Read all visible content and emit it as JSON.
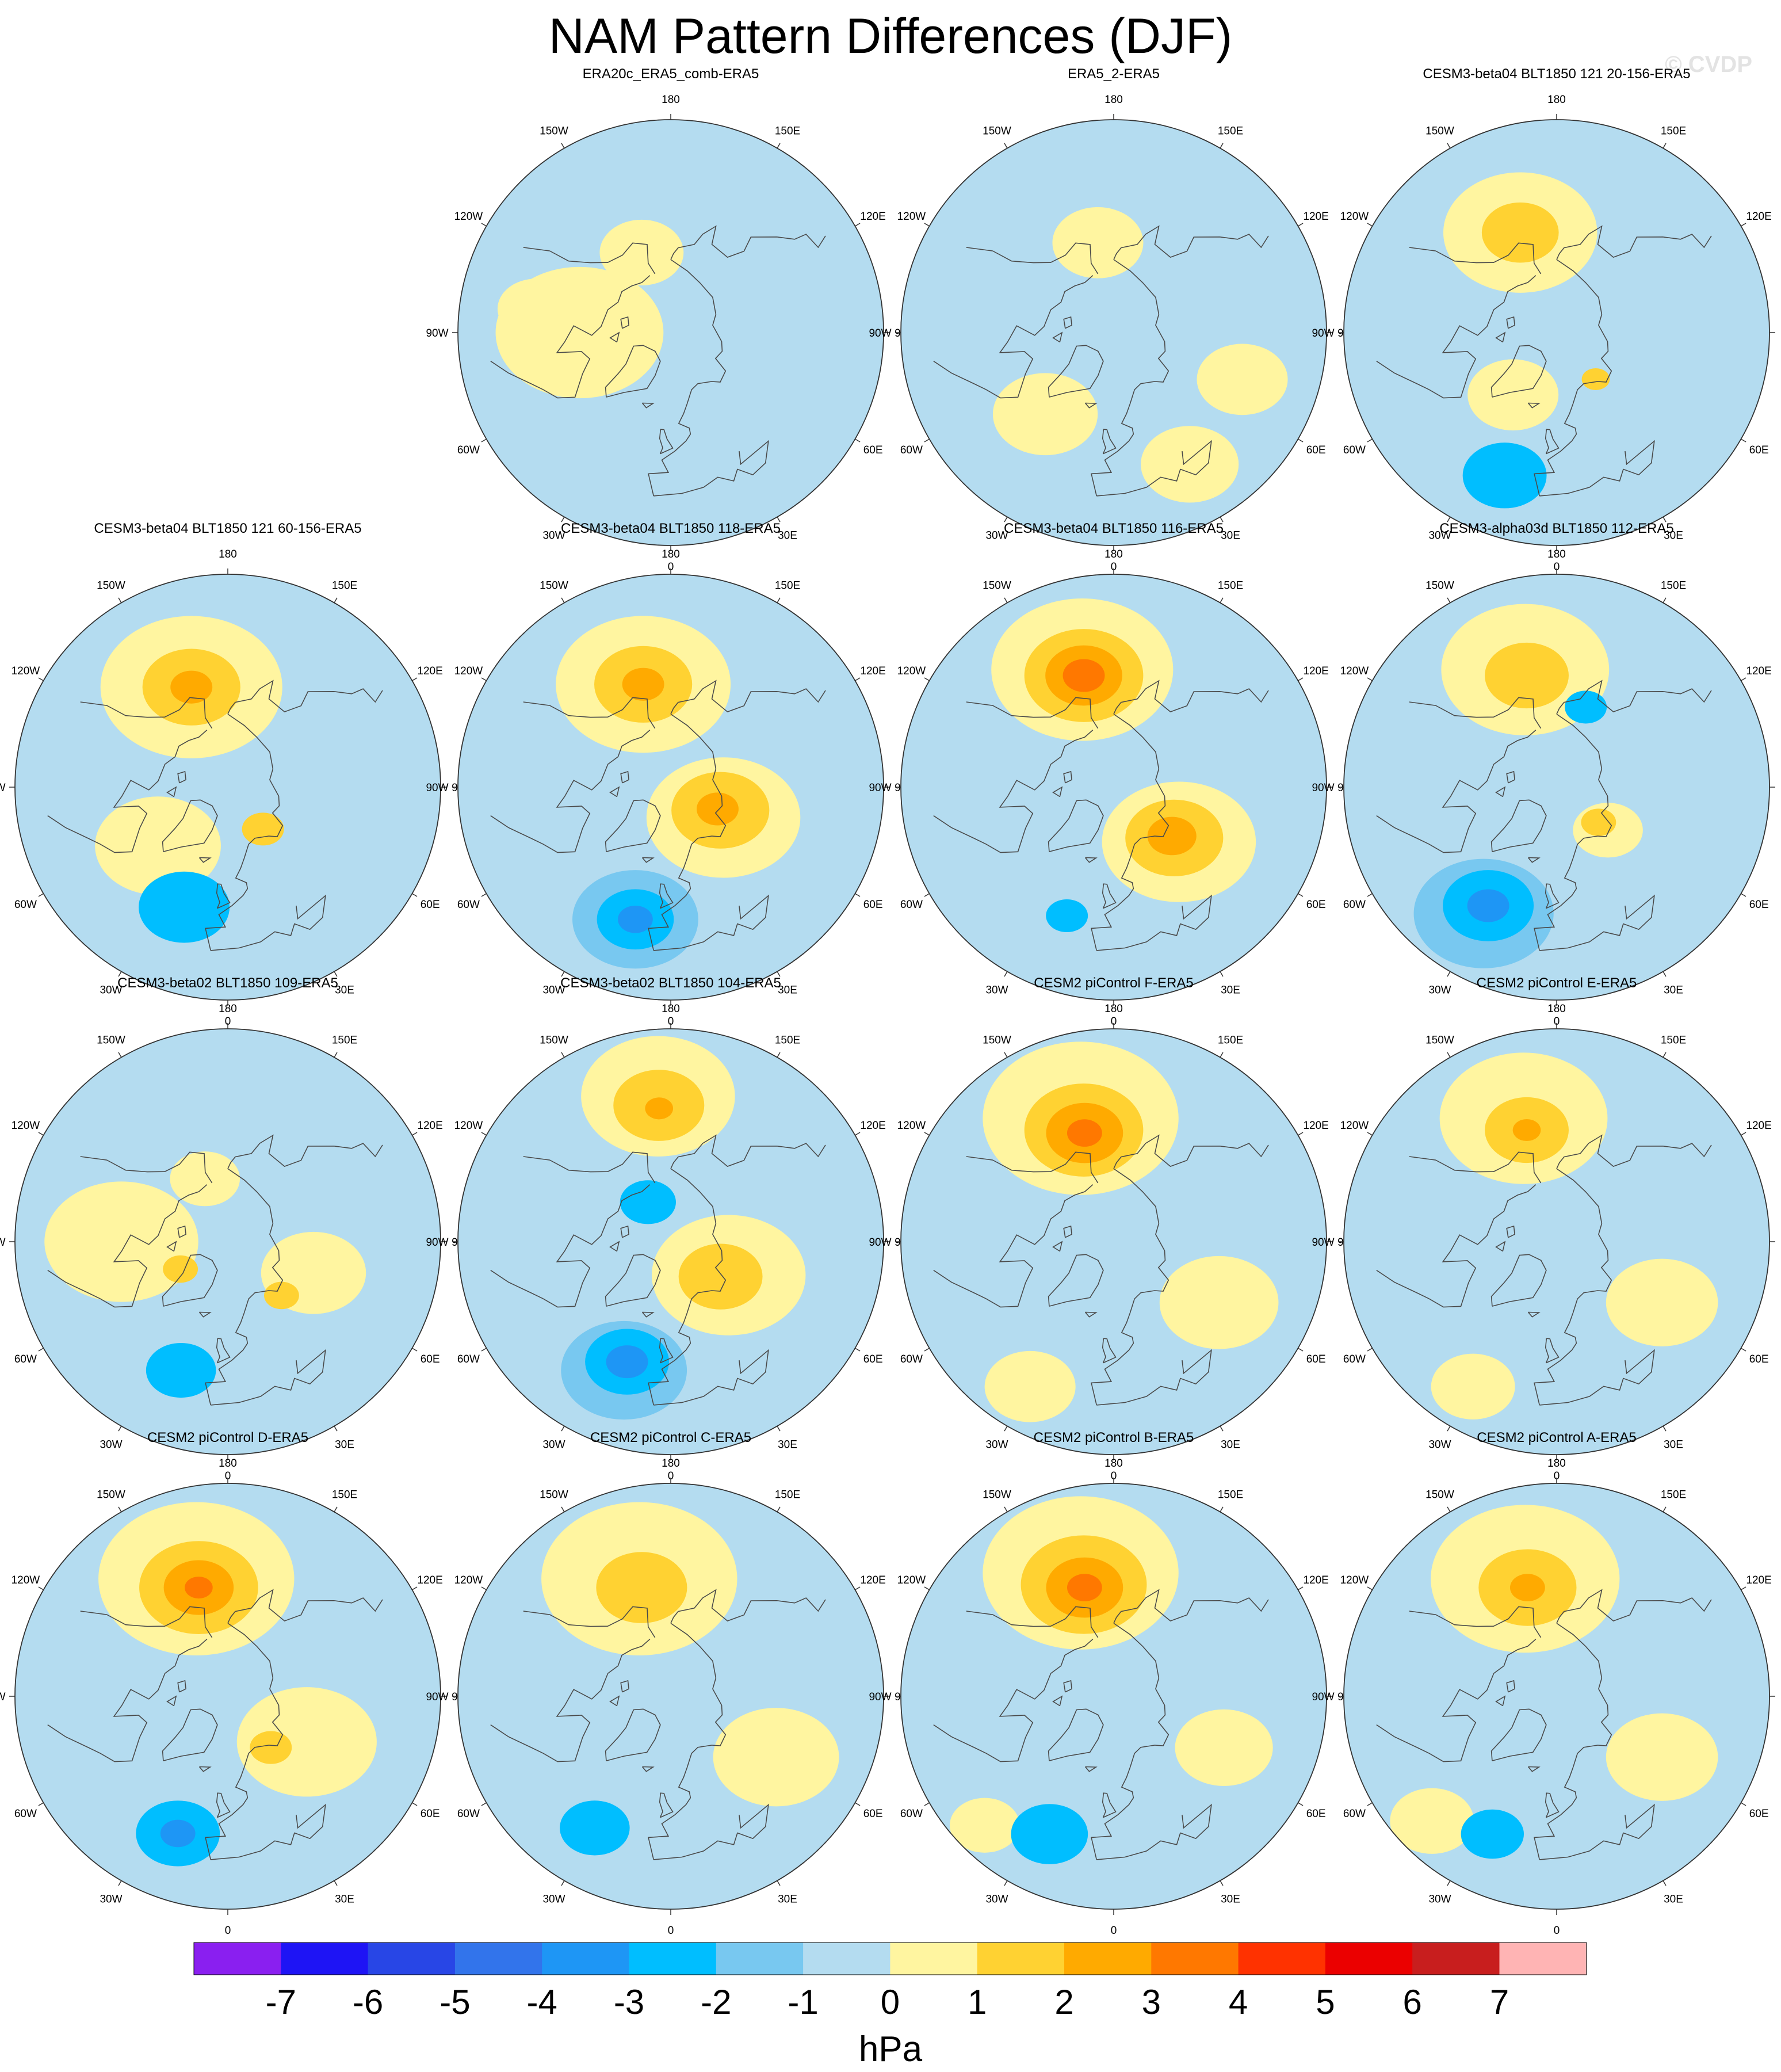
{
  "title": "NAM Pattern Differences (DJF)",
  "watermark": "© CVDP",
  "colors": {
    "ocean_fill": "#b4dcf0",
    "map_border": "#333333",
    "coast": "#4a4a4a",
    "background": "#ffffff"
  },
  "chart_data": {
    "type": "polar-contour-map-panels",
    "projection": "north-polar stereographic",
    "variable": "sea level pressure NAM pattern difference",
    "season": "DJF",
    "units": "hPa",
    "longitude_labels": [
      "180",
      "150E",
      "120E",
      "90E",
      "60E",
      "30E",
      "0",
      "30W",
      "60W",
      "90W",
      "120W",
      "150W"
    ],
    "colorbar": {
      "title": "hPa",
      "tick_labels": [
        "-7",
        "-6",
        "-5",
        "-4",
        "-3",
        "-2",
        "-1",
        "0",
        "1",
        "2",
        "3",
        "4",
        "5",
        "6",
        "7"
      ],
      "colors": [
        "#8a1ff0",
        "#1e14f5",
        "#2846e6",
        "#3274eb",
        "#1e96f5",
        "#00beff",
        "#78c8f0",
        "#b4dcf0",
        "#fff5a0",
        "#ffd232",
        "#ffaa00",
        "#ff7800",
        "#ff3200",
        "#eb0000",
        "#c81e1e",
        "#ffb4b4"
      ]
    },
    "panels": [
      {
        "title": "ERA20c_ERA5_comb-ERA5",
        "blobs": [
          {
            "lat": 60,
            "lon": -90,
            "r": 24,
            "level": 1
          },
          {
            "lat": 62,
            "lon": -160,
            "r": 12,
            "level": 1
          },
          {
            "lat": 45,
            "lon": -100,
            "r": 11,
            "level": 1
          }
        ]
      },
      {
        "title": "ERA5_2-ERA5",
        "blobs": [
          {
            "lat": 60,
            "lon": -170,
            "r": 13,
            "level": 1
          },
          {
            "lat": 55,
            "lon": -40,
            "r": 15,
            "level": 1
          },
          {
            "lat": 40,
            "lon": 30,
            "r": 14,
            "level": 1
          },
          {
            "lat": 45,
            "lon": 70,
            "r": 13,
            "level": 1
          }
        ]
      },
      {
        "title": "CESM3-beta04 BLT1850 121 20-156-ERA5",
        "blobs": [
          {
            "lat": 55,
            "lon": -160,
            "r": 22,
            "level": 1
          },
          {
            "lat": 55,
            "lon": -160,
            "r": 11,
            "level": 2
          },
          {
            "lat": 65,
            "lon": -35,
            "r": 13,
            "level": 1
          },
          {
            "lat": 70,
            "lon": 40,
            "r": 4,
            "level": 2
          },
          {
            "lat": 40,
            "lon": -20,
            "r": 12,
            "level": -2
          }
        ]
      },
      {
        "title": "CESM3-beta04 BLT1850 121 60-156-ERA5",
        "blobs": [
          {
            "lat": 55,
            "lon": -160,
            "r": 26,
            "level": 1
          },
          {
            "lat": 55,
            "lon": -160,
            "r": 14,
            "level": 2
          },
          {
            "lat": 55,
            "lon": -160,
            "r": 6,
            "level": 3
          },
          {
            "lat": 60,
            "lon": -50,
            "r": 18,
            "level": 1
          },
          {
            "lat": 72,
            "lon": 40,
            "r": 6,
            "level": 2
          },
          {
            "lat": 48,
            "lon": -20,
            "r": 13,
            "level": -2
          }
        ]
      },
      {
        "title": "CESM3-beta04 BLT1850 118-ERA5",
        "blobs": [
          {
            "lat": 55,
            "lon": -165,
            "r": 25,
            "level": 1
          },
          {
            "lat": 55,
            "lon": -165,
            "r": 14,
            "level": 2
          },
          {
            "lat": 55,
            "lon": -165,
            "r": 6,
            "level": 3
          },
          {
            "lat": 70,
            "lon": 60,
            "r": 22,
            "level": 1
          },
          {
            "lat": 72,
            "lon": 65,
            "r": 14,
            "level": 2
          },
          {
            "lat": 73,
            "lon": 65,
            "r": 6,
            "level": 3
          },
          {
            "lat": 45,
            "lon": -15,
            "r": 18,
            "level": -1
          },
          {
            "lat": 45,
            "lon": -15,
            "r": 11,
            "level": -2
          },
          {
            "lat": 45,
            "lon": -15,
            "r": 5,
            "level": -3
          }
        ]
      },
      {
        "title": "CESM3-beta04 BLT1850 116-ERA5",
        "blobs": [
          {
            "lat": 50,
            "lon": -165,
            "r": 26,
            "level": 1
          },
          {
            "lat": 52,
            "lon": -165,
            "r": 17,
            "level": 2
          },
          {
            "lat": 52,
            "lon": -165,
            "r": 11,
            "level": 3
          },
          {
            "lat": 52,
            "lon": -165,
            "r": 6,
            "level": 4
          },
          {
            "lat": 62,
            "lon": 50,
            "r": 22,
            "level": 1
          },
          {
            "lat": 64,
            "lon": 50,
            "r": 14,
            "level": 2
          },
          {
            "lat": 65,
            "lon": 50,
            "r": 7,
            "level": 3
          },
          {
            "lat": 45,
            "lon": -20,
            "r": 6,
            "level": -2
          }
        ]
      },
      {
        "title": "CESM3-alpha03d BLT1850 112-ERA5",
        "blobs": [
          {
            "lat": 50,
            "lon": -165,
            "r": 24,
            "level": 1
          },
          {
            "lat": 52,
            "lon": -165,
            "r": 12,
            "level": 2
          },
          {
            "lat": 68,
            "lon": 50,
            "r": 10,
            "level": 1
          },
          {
            "lat": 72,
            "lon": 50,
            "r": 5,
            "level": 2
          },
          {
            "lat": 42,
            "lon": -30,
            "r": 20,
            "level": -1
          },
          {
            "lat": 45,
            "lon": -30,
            "r": 13,
            "level": -2
          },
          {
            "lat": 45,
            "lon": -30,
            "r": 6,
            "level": -3
          },
          {
            "lat": 62,
            "lon": 160,
            "r": 6,
            "level": -2
          }
        ]
      },
      {
        "title": "CESM3-beta02 BLT1850 109-ERA5",
        "blobs": [
          {
            "lat": 55,
            "lon": -90,
            "r": 22,
            "level": 1
          },
          {
            "lat": 60,
            "lon": 70,
            "r": 15,
            "level": 1
          },
          {
            "lat": 72,
            "lon": -60,
            "r": 5,
            "level": 2
          },
          {
            "lat": 65,
            "lon": 45,
            "r": 5,
            "level": 2
          },
          {
            "lat": 45,
            "lon": -20,
            "r": 10,
            "level": -2
          },
          {
            "lat": 68,
            "lon": -160,
            "r": 10,
            "level": 1
          }
        ]
      },
      {
        "title": "CESM3-beta02 BLT1850 104-ERA5",
        "blobs": [
          {
            "lat": 42,
            "lon": -175,
            "r": 22,
            "level": 1
          },
          {
            "lat": 45,
            "lon": -175,
            "r": 13,
            "level": 2
          },
          {
            "lat": 46,
            "lon": -175,
            "r": 4,
            "level": 3
          },
          {
            "lat": 68,
            "lon": 60,
            "r": 22,
            "level": 1
          },
          {
            "lat": 70,
            "lon": 55,
            "r": 12,
            "level": 2
          },
          {
            "lat": 45,
            "lon": -20,
            "r": 18,
            "level": -1
          },
          {
            "lat": 48,
            "lon": -20,
            "r": 12,
            "level": -2
          },
          {
            "lat": 48,
            "lon": -20,
            "r": 6,
            "level": -3
          },
          {
            "lat": 75,
            "lon": -150,
            "r": 8,
            "level": -2
          }
        ]
      },
      {
        "title": "CESM2 piControl F-ERA5",
        "blobs": [
          {
            "lat": 48,
            "lon": -165,
            "r": 28,
            "level": 1
          },
          {
            "lat": 52,
            "lon": -165,
            "r": 17,
            "level": 2
          },
          {
            "lat": 53,
            "lon": -165,
            "r": 11,
            "level": 3
          },
          {
            "lat": 53,
            "lon": -165,
            "r": 5,
            "level": 4
          },
          {
            "lat": 50,
            "lon": 60,
            "r": 17,
            "level": 1
          },
          {
            "lat": 35,
            "lon": -30,
            "r": 13,
            "level": 1
          }
        ]
      },
      {
        "title": "CESM2 piControl E-ERA5",
        "blobs": [
          {
            "lat": 48,
            "lon": -165,
            "r": 24,
            "level": 1
          },
          {
            "lat": 52,
            "lon": -165,
            "r": 12,
            "level": 2
          },
          {
            "lat": 52,
            "lon": -165,
            "r": 4,
            "level": 3
          },
          {
            "lat": 50,
            "lon": 60,
            "r": 16,
            "level": 1
          },
          {
            "lat": 35,
            "lon": -30,
            "r": 12,
            "level": 1
          }
        ]
      },
      {
        "title": "CESM2 piControl D-ERA5",
        "blobs": [
          {
            "lat": 50,
            "lon": -165,
            "r": 28,
            "level": 1
          },
          {
            "lat": 53,
            "lon": -165,
            "r": 17,
            "level": 2
          },
          {
            "lat": 53,
            "lon": -165,
            "r": 10,
            "level": 3
          },
          {
            "lat": 53,
            "lon": -165,
            "r": 4,
            "level": 4
          },
          {
            "lat": 60,
            "lon": 60,
            "r": 20,
            "level": 1
          },
          {
            "lat": 68,
            "lon": 40,
            "r": 6,
            "level": 2
          },
          {
            "lat": 42,
            "lon": -20,
            "r": 12,
            "level": -2
          },
          {
            "lat": 42,
            "lon": -20,
            "r": 5,
            "level": -3
          }
        ]
      },
      {
        "title": "CESM2 piControl C-ERA5",
        "blobs": [
          {
            "lat": 50,
            "lon": -165,
            "r": 28,
            "level": 1
          },
          {
            "lat": 53,
            "lon": -165,
            "r": 13,
            "level": 2
          },
          {
            "lat": 50,
            "lon": 60,
            "r": 18,
            "level": 1
          },
          {
            "lat": 40,
            "lon": -30,
            "r": 10,
            "level": -2
          }
        ]
      },
      {
        "title": "CESM2 piControl B-ERA5",
        "blobs": [
          {
            "lat": 48,
            "lon": -165,
            "r": 28,
            "level": 1
          },
          {
            "lat": 52,
            "lon": -165,
            "r": 18,
            "level": 2
          },
          {
            "lat": 53,
            "lon": -165,
            "r": 11,
            "level": 3
          },
          {
            "lat": 53,
            "lon": -165,
            "r": 5,
            "level": 4
          },
          {
            "lat": 50,
            "lon": 65,
            "r": 14,
            "level": 1
          },
          {
            "lat": 40,
            "lon": -25,
            "r": 11,
            "level": -2
          },
          {
            "lat": 30,
            "lon": -45,
            "r": 10,
            "level": 1
          }
        ]
      },
      {
        "title": "CESM2 piControl A-ERA5",
        "blobs": [
          {
            "lat": 50,
            "lon": -165,
            "r": 27,
            "level": 1
          },
          {
            "lat": 53,
            "lon": -165,
            "r": 14,
            "level": 2
          },
          {
            "lat": 53,
            "lon": -165,
            "r": 5,
            "level": 3
          },
          {
            "lat": 50,
            "lon": 60,
            "r": 16,
            "level": 1
          },
          {
            "lat": 40,
            "lon": -25,
            "r": 9,
            "level": -2
          },
          {
            "lat": 32,
            "lon": -45,
            "r": 12,
            "level": 1
          }
        ]
      }
    ]
  }
}
